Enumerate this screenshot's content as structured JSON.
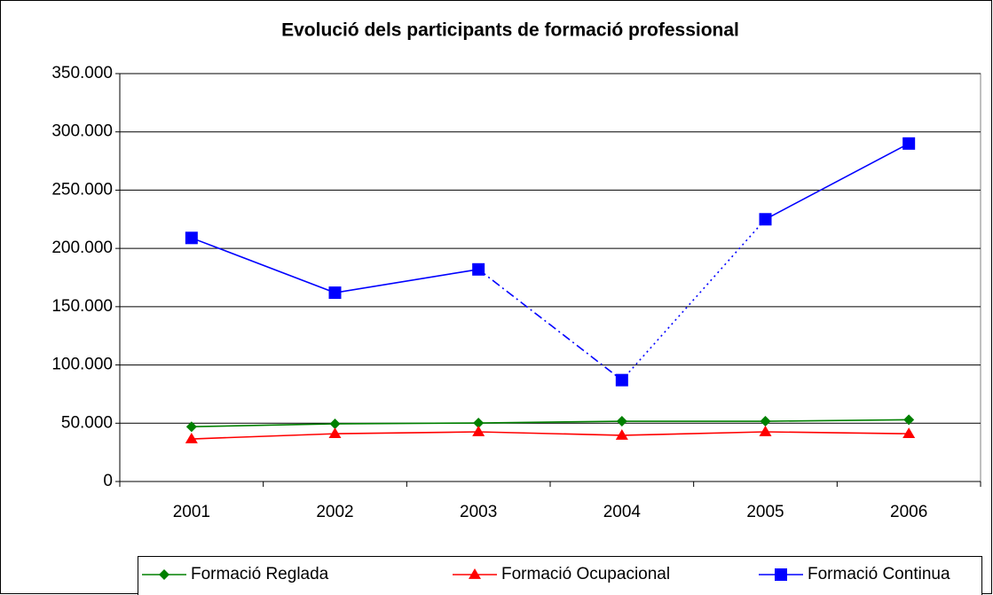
{
  "chart_data": {
    "type": "line",
    "title": "Evolució dels participants de formació professional",
    "categories": [
      "2001",
      "2002",
      "2003",
      "2004",
      "2005",
      "2006"
    ],
    "series": [
      {
        "name": "Formació Reglada",
        "color": "#008000",
        "marker": "diamond",
        "values": [
          47000,
          49500,
          50200,
          51700,
          51700,
          53000
        ]
      },
      {
        "name": "Formació Ocupacional",
        "color": "#ff0000",
        "marker": "triangle",
        "values": [
          36500,
          41000,
          42600,
          39600,
          42600,
          41000
        ]
      },
      {
        "name": "Formació Continua",
        "color": "#0000ff",
        "marker": "square",
        "values": [
          209000,
          162000,
          182000,
          87000,
          225000,
          290000
        ],
        "segment_dash": [
          "solid",
          "solid",
          "dashdot",
          "dotted",
          "solid"
        ]
      }
    ],
    "ylim": [
      0,
      350000
    ],
    "yticks": [
      0,
      {
        "value": 50000,
        "label": "50.000"
      },
      {
        "value": 100000,
        "label": "100.000"
      },
      {
        "value": 150000,
        "label": "150.000"
      },
      {
        "value": 200000,
        "label": "200.000"
      },
      {
        "value": 250000,
        "label": "250.000"
      },
      {
        "value": 300000,
        "label": "300.000"
      },
      {
        "value": 350000,
        "label": "350.000"
      }
    ],
    "grid": true,
    "legend": "bottom"
  }
}
